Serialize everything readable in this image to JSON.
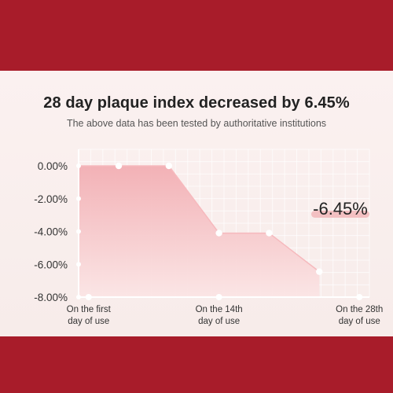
{
  "colors": {
    "background": "#a81c2a",
    "card": "#f8edeb",
    "area_top": "#f2aeb3",
    "area_bottom": "#fbe3e3",
    "line": "#f6b9bd",
    "highlight_bar": "#f3c0c2",
    "text": "#222222"
  },
  "header": {
    "title": "28 day plaque index decreased by 6.45%",
    "subtitle": "The above data has been tested by authoritative institutions"
  },
  "chart_data": {
    "type": "area",
    "title": "28 day plaque index decreased by 6.45%",
    "subtitle": "The above data has been tested by authoritative institutions",
    "ylim": [
      -8,
      0
    ],
    "yticks": [
      "0.00%",
      "-2.00%",
      "-4.00%",
      "-6.00%",
      "-8.00%"
    ],
    "ytick_values": [
      0,
      -2,
      -4,
      -6,
      -8
    ],
    "xticks": [
      {
        "day": 1,
        "line1": "On the first",
        "line2": "day of use"
      },
      {
        "day": 14,
        "line1": "On the 14th",
        "line2": "day of use"
      },
      {
        "day": 28,
        "line1": "On the  28th",
        "line2": "day of use"
      }
    ],
    "x_range": [
      0,
      29
    ],
    "points": [
      {
        "day": 0,
        "value": 0
      },
      {
        "day": 4,
        "value": 0
      },
      {
        "day": 9,
        "value": 0
      },
      {
        "day": 14,
        "value": -4.1
      },
      {
        "day": 19,
        "value": -4.1
      },
      {
        "day": 24,
        "value": -6.45
      }
    ],
    "grid": true,
    "annotation": {
      "text": "-6.45%"
    }
  }
}
